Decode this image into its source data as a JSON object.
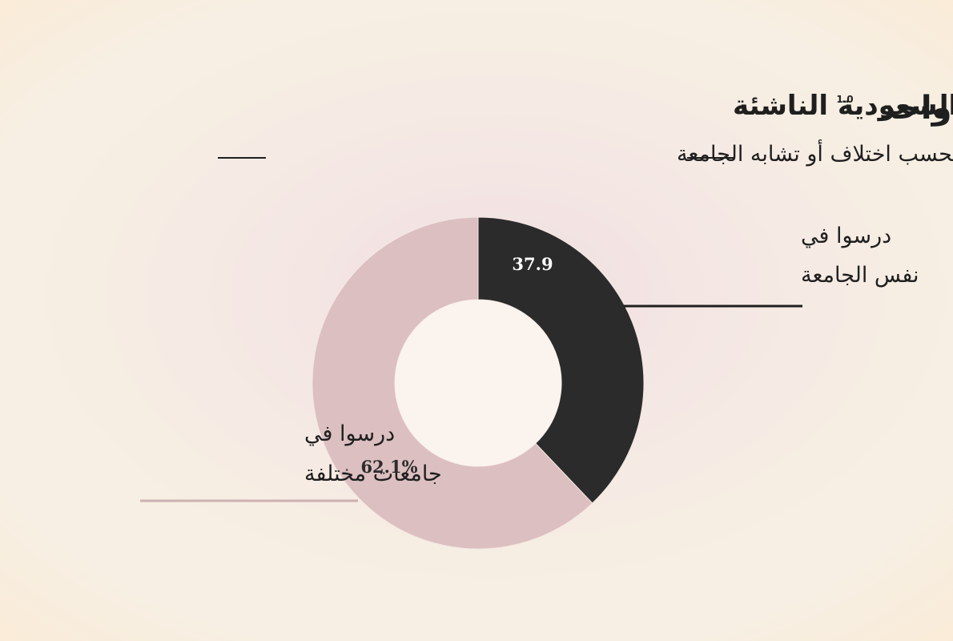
{
  "logo": {
    "text": "صفر لـ واحد",
    "mark": "1.0"
  },
  "chart_data": {
    "type": "pie",
    "title": "مؤسسين الشركات السعودية الناشئة",
    "subtitle": "بحسب اختلاف أو تشابه الجامعة",
    "donut": true,
    "slices": [
      {
        "value": 37.9,
        "value_label": "37.9",
        "label_lines": [
          "درسوا في",
          "نفس الجامعة"
        ],
        "color": "#2b2b2b",
        "label_color": "#ffffff"
      },
      {
        "value": 62.1,
        "value_label": "62.1%",
        "label_lines": [
          "درسوا في",
          "جامعات مختلفة"
        ],
        "color": "#dcbfc0",
        "label_color": "#2b2b2b"
      }
    ]
  },
  "colors": {
    "background": "#f7efe3",
    "text": "#1f1f1f"
  }
}
